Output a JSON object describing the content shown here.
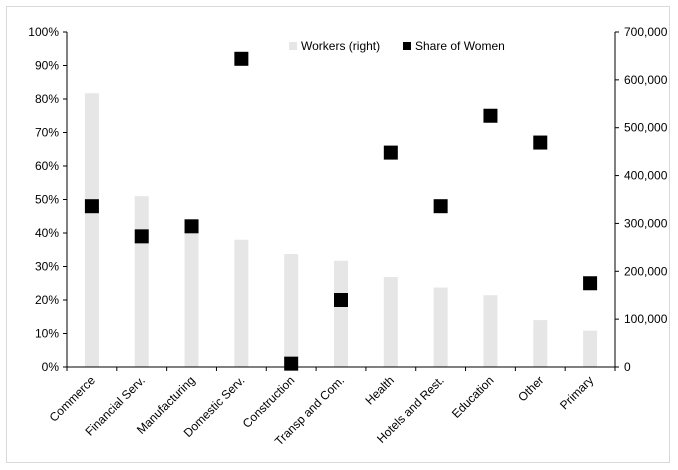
{
  "chart_data": {
    "type": "bar",
    "categories": [
      "Commerce",
      "Financial Serv.",
      "Manufacturing",
      "Domestic Serv.",
      "Construction",
      "Transp and Com.",
      "Health",
      "Hotels and Rest.",
      "Education",
      "Other",
      "Primary"
    ],
    "series": [
      {
        "name": "Workers (right)",
        "type": "bar",
        "axis": "right",
        "color": "#e6e6e6",
        "values": [
          572000,
          357000,
          292000,
          266000,
          236000,
          222000,
          188000,
          166000,
          150000,
          98000,
          76000
        ]
      },
      {
        "name": "Share of Women",
        "type": "scatter",
        "axis": "left",
        "marker": "square",
        "color": "#000000",
        "values": [
          0.48,
          0.39,
          0.42,
          0.92,
          0.01,
          0.2,
          0.64,
          0.48,
          0.75,
          0.67,
          0.25
        ]
      }
    ],
    "y_left": {
      "ylim": [
        0,
        1
      ],
      "ticks": [
        0,
        0.1,
        0.2,
        0.3,
        0.4,
        0.5,
        0.6,
        0.7,
        0.8,
        0.9,
        1.0
      ],
      "tick_labels": [
        "0%",
        "10%",
        "20%",
        "30%",
        "40%",
        "50%",
        "60%",
        "70%",
        "80%",
        "90%",
        "100%"
      ]
    },
    "y_right": {
      "ylim": [
        0,
        700000
      ],
      "ticks": [
        0,
        100000,
        200000,
        300000,
        400000,
        500000,
        600000,
        700000
      ],
      "tick_labels": [
        "0",
        "100,000",
        "200,000",
        "300,000",
        "400,000",
        "500,000",
        "600,000",
        "700,000"
      ]
    },
    "legend": {
      "position": "top-center",
      "entries": [
        "Workers (right)",
        "Share of Women"
      ]
    },
    "grid": false,
    "title": "",
    "xlabel": "",
    "ylabel": ""
  }
}
